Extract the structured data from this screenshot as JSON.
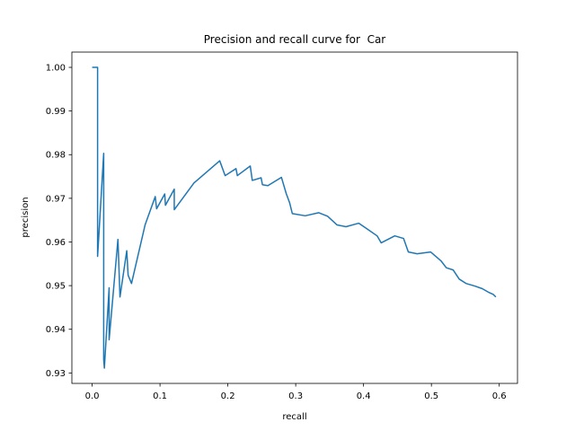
{
  "chart_data": {
    "type": "line",
    "title": "Precision and recall curve for  Car",
    "x_label": "recall",
    "y_label": "precision",
    "x": [
      0.0,
      0.008,
      0.008,
      0.017,
      0.017,
      0.018,
      0.025,
      0.025,
      0.038,
      0.041,
      0.051,
      0.053,
      0.058,
      0.078,
      0.093,
      0.095,
      0.107,
      0.108,
      0.121,
      0.121,
      0.15,
      0.188,
      0.196,
      0.212,
      0.214,
      0.233,
      0.236,
      0.249,
      0.251,
      0.259,
      0.279,
      0.286,
      0.291,
      0.295,
      0.314,
      0.334,
      0.347,
      0.354,
      0.361,
      0.374,
      0.393,
      0.407,
      0.42,
      0.426,
      0.446,
      0.459,
      0.466,
      0.479,
      0.499,
      0.514,
      0.522,
      0.532,
      0.541,
      0.551,
      0.564,
      0.575,
      0.584,
      0.591,
      0.595
    ],
    "y": [
      1.0,
      1.0,
      0.9567,
      0.9803,
      0.9331,
      0.9311,
      0.9495,
      0.9376,
      0.9606,
      0.9474,
      0.958,
      0.9524,
      0.9505,
      0.9639,
      0.9704,
      0.9676,
      0.971,
      0.9684,
      0.9721,
      0.9674,
      0.9735,
      0.9786,
      0.9752,
      0.9768,
      0.9752,
      0.9774,
      0.9741,
      0.9747,
      0.9731,
      0.9729,
      0.9748,
      0.9711,
      0.969,
      0.9665,
      0.966,
      0.9667,
      0.9659,
      0.9649,
      0.9639,
      0.9635,
      0.9643,
      0.9628,
      0.9614,
      0.9598,
      0.9614,
      0.9608,
      0.9577,
      0.9573,
      0.9577,
      0.9557,
      0.9541,
      0.9536,
      0.9515,
      0.9505,
      0.9499,
      0.9493,
      0.9485,
      0.948,
      0.9474
    ],
    "color": "#1f77b4",
    "xlim": [
      -0.0299,
      0.6269
    ],
    "ylim": [
      0.9276,
      1.0035
    ],
    "xticks": [
      {
        "value": 0.0,
        "label": "0.0"
      },
      0.1,
      0.2,
      0.3,
      0.4,
      0.5,
      0.6
    ],
    "yticks": [
      0.93,
      0.94,
      0.95,
      0.96,
      0.97,
      0.98,
      0.99,
      {
        "value": 1.0,
        "label": "1.00"
      }
    ]
  }
}
